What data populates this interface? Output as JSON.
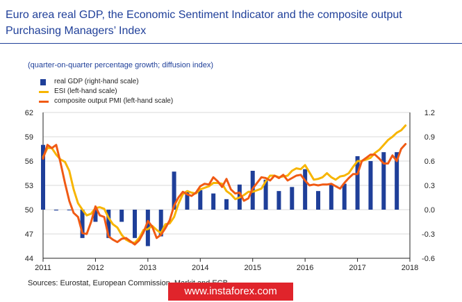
{
  "title": "Euro area real GDP, the Economic Sentiment Indicator and the composite output Purchasing Managers’ Index",
  "source": "Sources: Eurostat, European Commission, Markit and ECB.",
  "watermark": "www.instaforex.com",
  "chart_data": {
    "type": "bar+line",
    "subtitle": "(quarter-on-quarter percentage growth; diffusion index)",
    "legend": [
      {
        "label": "real GDP (right-hand scale)",
        "color": "#1f3f99",
        "kind": "bar"
      },
      {
        "label": "ESI (left-hand scale)",
        "color": "#f7b500",
        "kind": "line"
      },
      {
        "label": "composite output PMI (left-hand scale)",
        "color": "#f05a14",
        "kind": "line"
      }
    ],
    "x_ticks": [
      "2011",
      "2012",
      "2013",
      "2014",
      "2015",
      "2016",
      "2017",
      "2018"
    ],
    "left_axis": {
      "ticks": [
        "44",
        "47",
        "50",
        "53",
        "56",
        "59",
        "62"
      ],
      "min": 44,
      "max": 62
    },
    "right_axis": {
      "ticks": [
        "-0.6",
        "-0.3",
        "0.0",
        "0.3",
        "0.6",
        "0.9",
        "1.2"
      ],
      "min": -0.6,
      "max": 1.2
    },
    "x_range": [
      2011.0,
      2018.0
    ],
    "gdp": {
      "name": "real GDP (right-hand scale)",
      "x": [
        2011.0,
        2011.25,
        2011.5,
        2011.75,
        2012.0,
        2012.25,
        2012.5,
        2012.75,
        2013.0,
        2013.25,
        2013.5,
        2013.75,
        2014.0,
        2014.25,
        2014.5,
        2014.75,
        2015.0,
        2015.25,
        2015.5,
        2015.75,
        2016.0,
        2016.25,
        2016.5,
        2016.75,
        2017.0,
        2017.25,
        2017.5,
        2017.75
      ],
      "values": [
        0.8,
        -0.01,
        0.0,
        -0.35,
        -0.15,
        -0.35,
        -0.15,
        -0.35,
        -0.45,
        -0.33,
        0.47,
        0.23,
        0.24,
        0.2,
        0.13,
        0.31,
        0.48,
        0.37,
        0.23,
        0.28,
        0.5,
        0.23,
        0.32,
        0.32,
        0.66,
        0.6,
        0.71,
        0.71
      ]
    },
    "esi": {
      "name": "ESI (left-hand scale)",
      "x": [
        2011.0,
        2011.083,
        2011.167,
        2011.25,
        2011.333,
        2011.417,
        2011.5,
        2011.583,
        2011.667,
        2011.75,
        2011.833,
        2011.917,
        2012.0,
        2012.083,
        2012.167,
        2012.25,
        2012.333,
        2012.417,
        2012.5,
        2012.583,
        2012.667,
        2012.75,
        2012.833,
        2012.917,
        2013.0,
        2013.083,
        2013.167,
        2013.25,
        2013.333,
        2013.417,
        2013.5,
        2013.583,
        2013.667,
        2013.75,
        2013.833,
        2013.917,
        2014.0,
        2014.083,
        2014.167,
        2014.25,
        2014.333,
        2014.417,
        2014.5,
        2014.583,
        2014.667,
        2014.75,
        2014.833,
        2014.917,
        2015.0,
        2015.083,
        2015.167,
        2015.25,
        2015.333,
        2015.417,
        2015.5,
        2015.583,
        2015.667,
        2015.75,
        2015.833,
        2015.917,
        2016.0,
        2016.083,
        2016.167,
        2016.25,
        2016.333,
        2016.417,
        2016.5,
        2016.583,
        2016.667,
        2016.75,
        2016.833,
        2016.917,
        2017.0,
        2017.083,
        2017.167,
        2017.25,
        2017.333,
        2017.417,
        2017.5,
        2017.583,
        2017.667,
        2017.75,
        2017.833,
        2017.917
      ],
      "values": [
        56.5,
        57.6,
        57.6,
        56.8,
        56.2,
        55.9,
        54.8,
        52.5,
        50.8,
        50.0,
        49.3,
        49.5,
        50.2,
        50.3,
        50.1,
        49.0,
        48.2,
        47.8,
        46.9,
        46.3,
        46.0,
        45.9,
        46.5,
        47.5,
        47.6,
        48.0,
        47.5,
        47.1,
        48.2,
        48.3,
        49.1,
        50.7,
        51.9,
        52.3,
        52.1,
        52.0,
        52.5,
        52.7,
        52.9,
        53.3,
        53.3,
        53.2,
        52.3,
        51.9,
        51.3,
        51.5,
        51.8,
        52.2,
        52.2,
        52.4,
        52.6,
        53.5,
        54.2,
        54.2,
        54.0,
        54.1,
        54.2,
        54.8,
        55.1,
        55.0,
        55.5,
        54.6,
        53.7,
        53.8,
        54.0,
        54.5,
        54.0,
        53.7,
        54.1,
        54.2,
        54.5,
        55.3,
        56.0,
        56.0,
        56.2,
        56.4,
        57.0,
        57.4,
        58.0,
        58.6,
        59.0,
        59.5,
        59.8,
        60.4
      ]
    },
    "pmi": {
      "name": "composite output PMI (left-hand scale)",
      "x": [
        2011.0,
        2011.083,
        2011.167,
        2011.25,
        2011.333,
        2011.417,
        2011.5,
        2011.583,
        2011.667,
        2011.75,
        2011.833,
        2011.917,
        2012.0,
        2012.083,
        2012.167,
        2012.25,
        2012.333,
        2012.417,
        2012.5,
        2012.583,
        2012.667,
        2012.75,
        2012.833,
        2012.917,
        2013.0,
        2013.083,
        2013.167,
        2013.25,
        2013.333,
        2013.417,
        2013.5,
        2013.583,
        2013.667,
        2013.75,
        2013.833,
        2013.917,
        2014.0,
        2014.083,
        2014.167,
        2014.25,
        2014.333,
        2014.417,
        2014.5,
        2014.583,
        2014.667,
        2014.75,
        2014.833,
        2014.917,
        2015.0,
        2015.083,
        2015.167,
        2015.25,
        2015.333,
        2015.417,
        2015.5,
        2015.583,
        2015.667,
        2015.75,
        2015.833,
        2015.917,
        2016.0,
        2016.083,
        2016.167,
        2016.25,
        2016.333,
        2016.417,
        2016.5,
        2016.583,
        2016.667,
        2016.75,
        2016.833,
        2016.917,
        2017.0,
        2017.083,
        2017.167,
        2017.25,
        2017.333,
        2017.417,
        2017.5,
        2017.583,
        2017.667,
        2017.75,
        2017.833,
        2017.917
      ],
      "values": [
        56.3,
        58.0,
        57.6,
        58.0,
        55.8,
        53.3,
        51.1,
        49.6,
        49.1,
        47.1,
        47.0,
        48.5,
        50.4,
        49.3,
        49.1,
        46.7,
        46.3,
        46.0,
        46.4,
        46.5,
        46.1,
        45.7,
        46.2,
        47.2,
        48.6,
        47.9,
        46.5,
        46.9,
        47.7,
        48.7,
        50.5,
        51.5,
        52.2,
        51.9,
        51.7,
        52.1,
        52.9,
        53.2,
        53.1,
        54.0,
        53.5,
        52.8,
        53.8,
        52.5,
        52.0,
        52.1,
        51.1,
        51.4,
        52.6,
        53.3,
        54.0,
        53.9,
        53.6,
        54.2,
        53.9,
        54.3,
        53.6,
        53.9,
        54.2,
        54.3,
        53.6,
        53.0,
        53.1,
        53.0,
        53.1,
        53.1,
        53.2,
        52.9,
        52.6,
        53.3,
        53.9,
        54.4,
        54.4,
        56.0,
        56.4,
        56.8,
        56.8,
        56.3,
        55.7,
        55.7,
        56.7,
        56.0,
        57.5,
        58.1
      ]
    }
  }
}
